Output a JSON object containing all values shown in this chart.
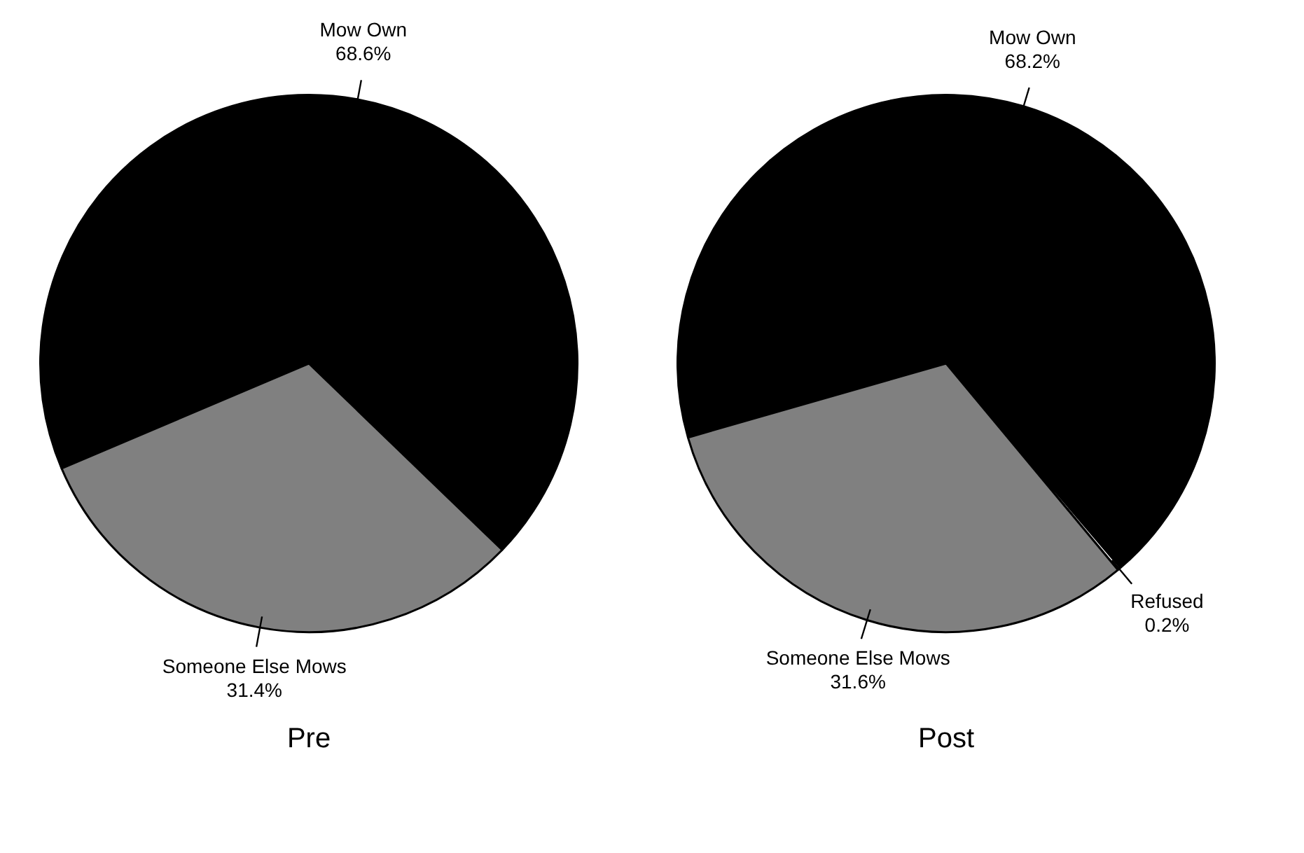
{
  "chart_data": [
    {
      "type": "pie",
      "title": "Pre",
      "categories": [
        "Mow Own",
        "Someone Else Mows"
      ],
      "values": [
        68.6,
        31.4
      ],
      "colors": [
        "#000000",
        "#808080"
      ],
      "value_labels": [
        "68.6%",
        "31.4%"
      ]
    },
    {
      "type": "pie",
      "title": "Post",
      "categories": [
        "Mow Own",
        "Refused",
        "Someone Else Mows"
      ],
      "values": [
        68.2,
        0.2,
        31.6
      ],
      "colors": [
        "#000000",
        "#ffffff",
        "#808080"
      ],
      "value_labels": [
        "68.2%",
        "0.2%",
        "31.6%"
      ]
    }
  ]
}
